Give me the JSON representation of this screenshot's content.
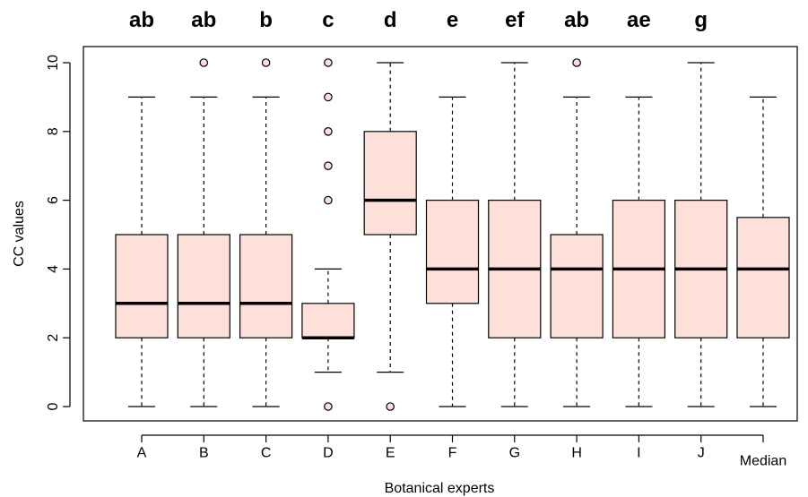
{
  "chart_data": {
    "type": "boxplot",
    "xlabel": "Botanical experts",
    "ylabel": "CC values",
    "ylim": [
      0,
      10
    ],
    "yticks": [
      0,
      2,
      4,
      6,
      8,
      10
    ],
    "categories": [
      "A",
      "B",
      "C",
      "D",
      "E",
      "F",
      "G",
      "H",
      "I",
      "J",
      "Median"
    ],
    "significance_letters": [
      "ab",
      "ab",
      "b",
      "c",
      "d",
      "e",
      "ef",
      "ab",
      "ae",
      "g",
      ""
    ],
    "boxes": [
      {
        "label": "A",
        "min": 0,
        "q1": 2,
        "median": 3,
        "q3": 5,
        "max": 9,
        "outliers": []
      },
      {
        "label": "B",
        "min": 0,
        "q1": 2,
        "median": 3,
        "q3": 5,
        "max": 9,
        "outliers": [
          10
        ]
      },
      {
        "label": "C",
        "min": 0,
        "q1": 2,
        "median": 3,
        "q3": 5,
        "max": 9,
        "outliers": [
          10
        ]
      },
      {
        "label": "D",
        "min": 1,
        "q1": 2,
        "median": 2,
        "q3": 3,
        "max": 4,
        "outliers": [
          0,
          6,
          7,
          8,
          9,
          10
        ]
      },
      {
        "label": "E",
        "min": 1,
        "q1": 5,
        "median": 6,
        "q3": 8,
        "max": 10,
        "outliers": [
          0
        ]
      },
      {
        "label": "F",
        "min": 0,
        "q1": 3,
        "median": 4,
        "q3": 6,
        "max": 9,
        "outliers": []
      },
      {
        "label": "G",
        "min": 0,
        "q1": 2,
        "median": 4,
        "q3": 6,
        "max": 10,
        "outliers": []
      },
      {
        "label": "H",
        "min": 0,
        "q1": 2,
        "median": 4,
        "q3": 5,
        "max": 9,
        "outliers": [
          10
        ]
      },
      {
        "label": "I",
        "min": 0,
        "q1": 2,
        "median": 4,
        "q3": 6,
        "max": 9,
        "outliers": []
      },
      {
        "label": "J",
        "min": 0,
        "q1": 2,
        "median": 4,
        "q3": 6,
        "max": 10,
        "outliers": []
      },
      {
        "label": "Median",
        "min": 0,
        "q1": 2,
        "median": 4,
        "q3": 5.5,
        "max": 9,
        "outliers": []
      }
    ],
    "colors": {
      "box_fill": "#fde0d9",
      "line": "#000000"
    },
    "grid": false
  }
}
